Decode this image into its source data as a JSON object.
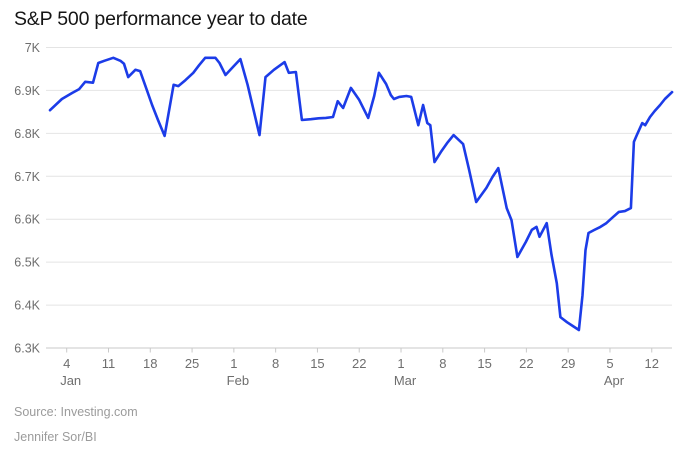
{
  "page": {
    "title": "S&P 500 performance year to date",
    "source": "Source: Investing.com",
    "credit": "Jennifer Sor/BI"
  },
  "chart_data": {
    "type": "line",
    "title": "S&P 500 performance year to date",
    "xlabel": "",
    "ylabel": "",
    "x_unit": "day of year (Jan 1 = 1), Jan-Apr",
    "y_domain": [
      6300,
      7000
    ],
    "x_domain": [
      1.2,
      105.4
    ],
    "grid": "horizontal",
    "legend": "none",
    "line_color": "#1c3ce8",
    "y_ticks": [
      [
        7000,
        "7K"
      ],
      [
        6900,
        "6.9K"
      ],
      [
        6800,
        "6.8K"
      ],
      [
        6700,
        "6.7K"
      ],
      [
        6600,
        "6.6K"
      ],
      [
        6500,
        "6.5K"
      ],
      [
        6400,
        "6.4K"
      ],
      [
        6300,
        "6.3K"
      ]
    ],
    "x_ticks": [
      [
        4,
        "4",
        "Jan"
      ],
      [
        11,
        "11",
        ""
      ],
      [
        18,
        "18",
        ""
      ],
      [
        25,
        "25",
        ""
      ],
      [
        32,
        "1",
        "Feb"
      ],
      [
        39,
        "8",
        ""
      ],
      [
        46,
        "15",
        ""
      ],
      [
        53,
        "22",
        ""
      ],
      [
        60,
        "1",
        "Mar"
      ],
      [
        67,
        "8",
        ""
      ],
      [
        74,
        "15",
        ""
      ],
      [
        81,
        "22",
        ""
      ],
      [
        88,
        "29",
        ""
      ],
      [
        95,
        "5",
        "Apr"
      ],
      [
        102,
        "12",
        ""
      ]
    ],
    "series": [
      {
        "name": "S&P 500",
        "points": [
          [
            1.2,
            6854
          ],
          [
            3.2,
            6880
          ],
          [
            4.9,
            6894
          ],
          [
            6.1,
            6903
          ],
          [
            7.1,
            6920
          ],
          [
            8.4,
            6918
          ],
          [
            9.3,
            6964
          ],
          [
            10.3,
            6969
          ],
          [
            11.8,
            6976
          ],
          [
            13.0,
            6969
          ],
          [
            13.6,
            6962
          ],
          [
            14.3,
            6931
          ],
          [
            15.5,
            6948
          ],
          [
            16.3,
            6945
          ],
          [
            17.3,
            6906
          ],
          [
            18.3,
            6866
          ],
          [
            19.3,
            6831
          ],
          [
            20.4,
            6794
          ],
          [
            21.9,
            6913
          ],
          [
            22.7,
            6910
          ],
          [
            23.9,
            6924
          ],
          [
            25.2,
            6941
          ],
          [
            26.2,
            6959
          ],
          [
            27.2,
            6976
          ],
          [
            28.9,
            6976
          ],
          [
            29.6,
            6964
          ],
          [
            30.6,
            6936
          ],
          [
            32.0,
            6957
          ],
          [
            33.1,
            6973
          ],
          [
            34.3,
            6913
          ],
          [
            35.3,
            6854
          ],
          [
            36.3,
            6796
          ],
          [
            37.3,
            6931
          ],
          [
            38.7,
            6948
          ],
          [
            40.5,
            6966
          ],
          [
            41.2,
            6941
          ],
          [
            42.4,
            6943
          ],
          [
            43.4,
            6831
          ],
          [
            44.9,
            6833
          ],
          [
            46.2,
            6835
          ],
          [
            47.4,
            6836
          ],
          [
            48.6,
            6838
          ],
          [
            49.4,
            6875
          ],
          [
            50.3,
            6859
          ],
          [
            51.6,
            6906
          ],
          [
            53.0,
            6878
          ],
          [
            54.5,
            6836
          ],
          [
            55.5,
            6887
          ],
          [
            56.3,
            6941
          ],
          [
            57.5,
            6915
          ],
          [
            58.3,
            6889
          ],
          [
            58.8,
            6880
          ],
          [
            59.7,
            6885
          ],
          [
            60.9,
            6887
          ],
          [
            61.7,
            6885
          ],
          [
            62.9,
            6819
          ],
          [
            63.7,
            6866
          ],
          [
            64.4,
            6824
          ],
          [
            64.9,
            6819
          ],
          [
            65.6,
            6733
          ],
          [
            66.7,
            6757
          ],
          [
            67.7,
            6777
          ],
          [
            68.8,
            6796
          ],
          [
            70.4,
            6775
          ],
          [
            71.4,
            6715
          ],
          [
            72.6,
            6640
          ],
          [
            74.3,
            6673
          ],
          [
            75.3,
            6698
          ],
          [
            76.3,
            6719
          ],
          [
            77.7,
            6626
          ],
          [
            78.5,
            6598
          ],
          [
            79.5,
            6512
          ],
          [
            80.9,
            6547
          ],
          [
            81.9,
            6575
          ],
          [
            82.7,
            6582
          ],
          [
            83.2,
            6559
          ],
          [
            84.4,
            6591
          ],
          [
            85.2,
            6517
          ],
          [
            86.1,
            6451
          ],
          [
            86.7,
            6372
          ],
          [
            87.8,
            6360
          ],
          [
            88.8,
            6351
          ],
          [
            89.8,
            6342
          ],
          [
            90.4,
            6423
          ],
          [
            90.9,
            6528
          ],
          [
            91.4,
            6568
          ],
          [
            92.4,
            6575
          ],
          [
            93.4,
            6582
          ],
          [
            94.4,
            6591
          ],
          [
            95.5,
            6605
          ],
          [
            96.5,
            6617
          ],
          [
            97.5,
            6619
          ],
          [
            98.5,
            6626
          ],
          [
            99.0,
            6780
          ],
          [
            99.5,
            6796
          ],
          [
            100.4,
            6824
          ],
          [
            100.9,
            6819
          ],
          [
            101.7,
            6838
          ],
          [
            102.5,
            6852
          ],
          [
            103.4,
            6866
          ],
          [
            104.2,
            6880
          ],
          [
            105.4,
            6896
          ]
        ]
      }
    ]
  },
  "colors": {
    "line": "#1c3ce8",
    "grid": "#e4e4e4",
    "axis": "#c9c9c9",
    "tick_text": "#6e6e6e",
    "title_text": "#151515",
    "source_text": "#9b9b9b",
    "background": "#ffffff"
  }
}
